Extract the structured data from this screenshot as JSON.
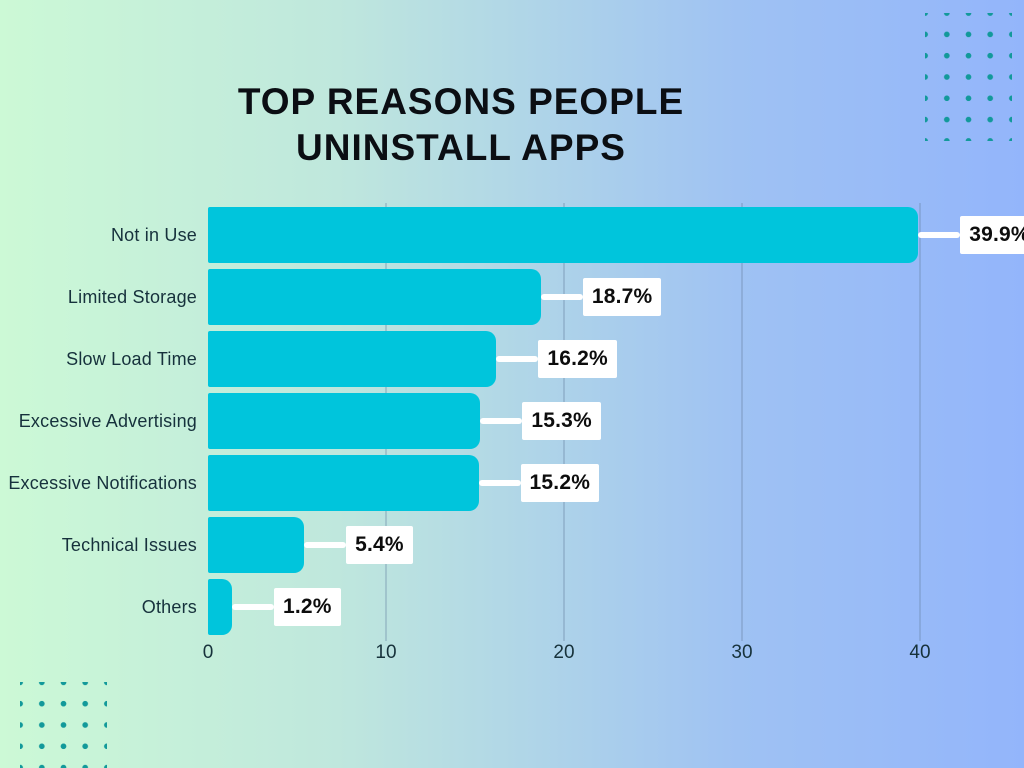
{
  "title": {
    "line1": "TOP REASONS PEOPLE",
    "line2": "UNINSTALL APPS"
  },
  "chart_data": {
    "type": "bar",
    "orientation": "horizontal",
    "title": "TOP REASONS PEOPLE UNINSTALL APPS",
    "categories": [
      "Not in Use",
      "Limited Storage",
      "Slow Load Time",
      "Excessive Advertising",
      "Excessive Notifications",
      "Technical Issues",
      "Others"
    ],
    "values": [
      39.9,
      18.7,
      16.2,
      15.3,
      15.2,
      5.4,
      1.2
    ],
    "value_labels": [
      "39.9%",
      "18.7%",
      "16.2%",
      "15.3%",
      "15.2%",
      "5.4%",
      "1.2%"
    ],
    "x_ticks": [
      0,
      10,
      20,
      30,
      40
    ],
    "xlim": [
      0,
      40
    ],
    "grid": true,
    "legend": "none",
    "bar_color": "#00c5dc"
  },
  "colors": {
    "background_left": "#ccf9d6",
    "background_right": "#93b5fb",
    "bar": "#00c5dc",
    "dot": "#12999a",
    "grid_line": "rgba(100,125,160,0.30)",
    "category_text": "#16313c",
    "title_text": "#0b0e13",
    "value_text": "#0d0d0d"
  }
}
